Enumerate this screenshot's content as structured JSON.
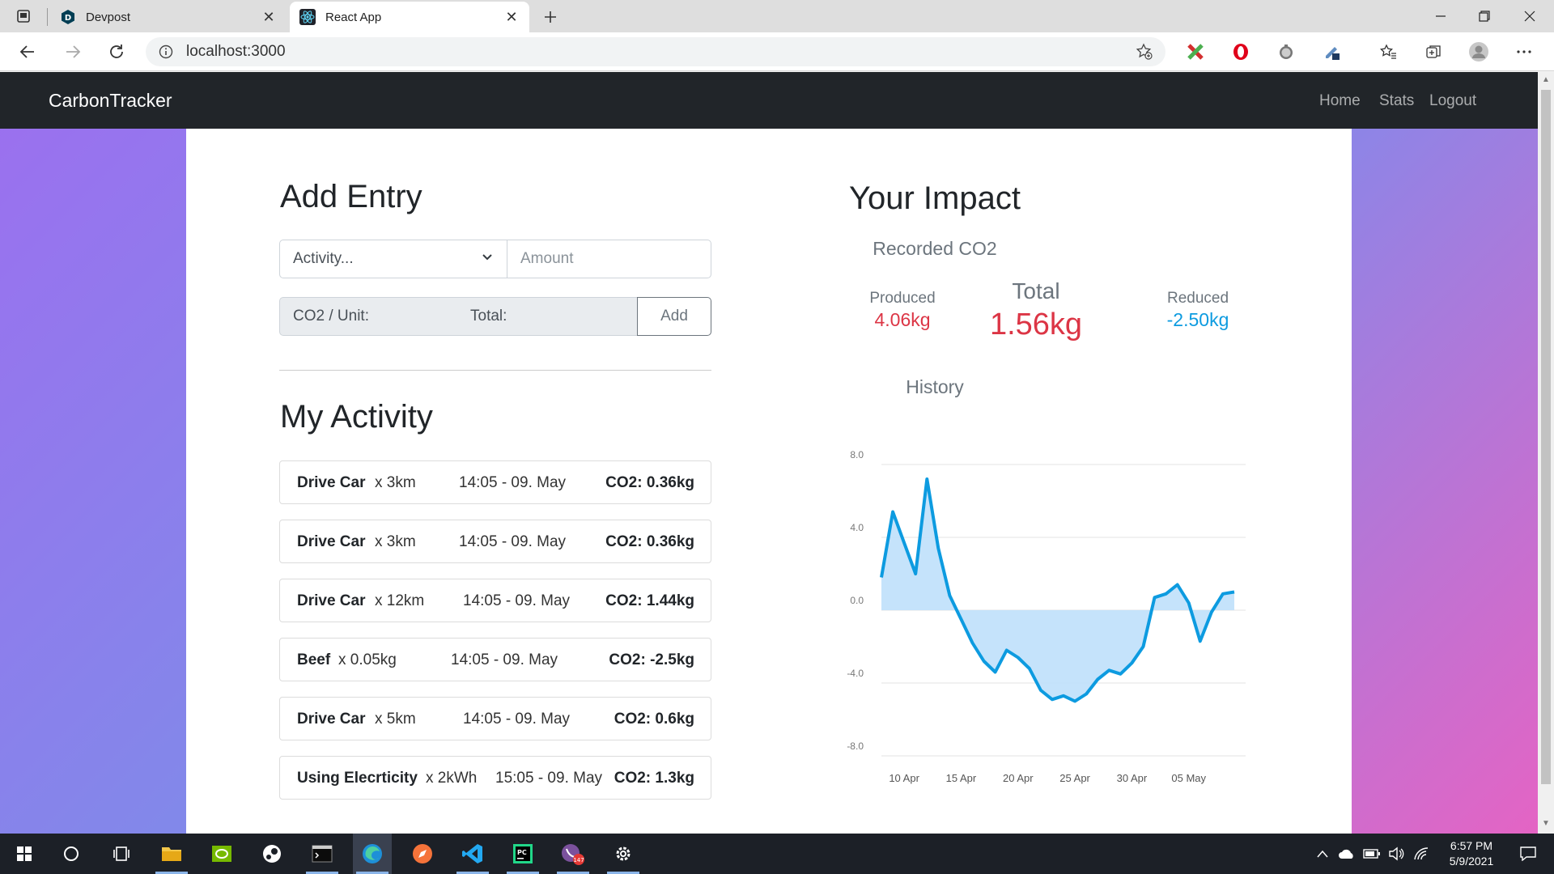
{
  "browser": {
    "tabs": [
      {
        "title": "Devpost",
        "favicon": "devpost-icon",
        "active": false
      },
      {
        "title": "React App",
        "favicon": "react-icon",
        "active": true
      }
    ],
    "url": "localhost:3000"
  },
  "navbar": {
    "brand": "CarbonTracker",
    "links": [
      "Home",
      "Stats",
      "Logout"
    ]
  },
  "add_entry": {
    "title": "Add Entry",
    "activity_placeholder": "Activity...",
    "amount_placeholder": "Amount",
    "co2_unit_label": "CO2 / Unit:",
    "total_label": "Total:",
    "add_label": "Add"
  },
  "my_activity": {
    "title": "My Activity",
    "entries": [
      {
        "name": "Drive Car",
        "qty": "x 3km",
        "time": "14:05 - 09. May",
        "co2": "CO2: 0.36kg"
      },
      {
        "name": "Drive Car",
        "qty": "x 3km",
        "time": "14:05 - 09. May",
        "co2": "CO2: 0.36kg"
      },
      {
        "name": "Drive Car",
        "qty": "x 12km",
        "time": "14:05 - 09. May",
        "co2": "CO2: 1.44kg"
      },
      {
        "name": "Beef",
        "qty": "x 0.05kg",
        "time": "14:05 - 09. May",
        "co2": "CO2: -2.5kg"
      },
      {
        "name": "Drive Car",
        "qty": "x 5km",
        "time": "14:05 - 09. May",
        "co2": "CO2: 0.6kg"
      },
      {
        "name": "Using Elecrticity",
        "qty": "x 2kWh",
        "time": "15:05 - 09. May",
        "co2": "CO2: 1.3kg"
      }
    ]
  },
  "impact": {
    "title": "Your Impact",
    "recorded_label": "Recorded CO2",
    "produced_label": "Produced",
    "produced_value": "4.06kg",
    "total_label": "Total",
    "total_value": "1.56kg",
    "reduced_label": "Reduced",
    "reduced_value": "-2.50kg",
    "history_label": "History",
    "colors": {
      "positive": "#dc3545",
      "negative": "#0d9be0"
    }
  },
  "chart_data": {
    "type": "area",
    "title": "History",
    "x": [
      "08 Apr",
      "09 Apr",
      "10 Apr",
      "11 Apr",
      "12 Apr",
      "13 Apr",
      "14 Apr",
      "15 Apr",
      "16 Apr",
      "17 Apr",
      "18 Apr",
      "19 Apr",
      "20 Apr",
      "21 Apr",
      "22 Apr",
      "23 Apr",
      "24 Apr",
      "25 Apr",
      "26 Apr",
      "27 Apr",
      "28 Apr",
      "29 Apr",
      "30 Apr",
      "01 May",
      "02 May",
      "03 May",
      "04 May",
      "05 May",
      "06 May",
      "07 May",
      "08 May",
      "09 May"
    ],
    "series": [
      {
        "values": [
          1.8,
          5.4,
          3.7,
          2.0,
          7.2,
          3.4,
          0.8,
          -0.5,
          -1.8,
          -2.8,
          -3.4,
          -2.2,
          -2.6,
          -3.2,
          -4.4,
          -4.9,
          -4.7,
          -5.0,
          -4.6,
          -3.8,
          -3.3,
          -3.5,
          -2.9,
          -2.0,
          0.7,
          0.9,
          1.4,
          0.4,
          -1.7,
          -0.1,
          0.9,
          1.0
        ]
      }
    ],
    "x_ticks": [
      "10 Apr",
      "15 Apr",
      "20 Apr",
      "25 Apr",
      "30 Apr",
      "05 May"
    ],
    "y_ticks": [
      "8.0",
      "4.0",
      "0.0",
      "-4.0",
      "-8.0"
    ],
    "ylim": [
      -8,
      8
    ],
    "grid": true,
    "color": "#0d9be0",
    "fill": "#bfe0fb"
  },
  "taskbar": {
    "apps": [
      "start-icon",
      "search-icon",
      "task-view-icon",
      "file-explorer-icon",
      "nvidia-icon",
      "steam-icon",
      "terminal-icon",
      "edge-icon",
      "safari-icon",
      "vscode-icon",
      "pycharm-icon",
      "viber-icon",
      "settings-icon"
    ],
    "viber_badge": "147",
    "time": "6:57 PM",
    "date": "5/9/2021"
  }
}
